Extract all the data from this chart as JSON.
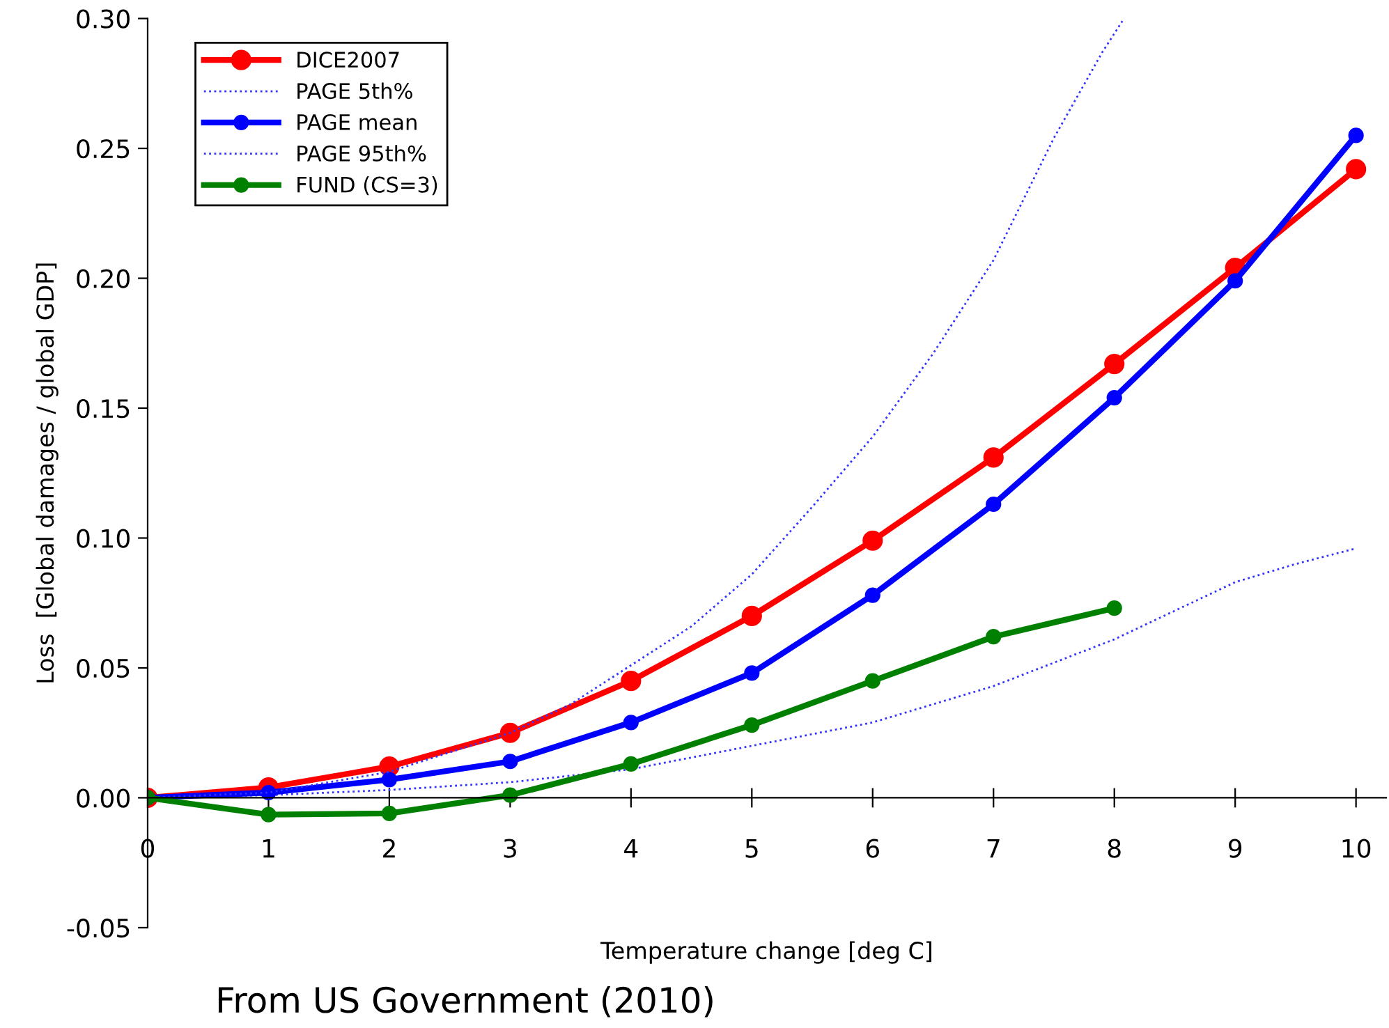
{
  "chart_data": {
    "type": "line",
    "xlabel": "Temperature change [deg C]",
    "ylabel": "Loss  [Global damages / global GDP]",
    "annotations": [
      "From US Government (2010)"
    ],
    "xlim": [
      0,
      10.25
    ],
    "xticks": [
      0,
      1,
      2,
      3,
      4,
      5,
      6,
      7,
      8,
      9,
      10
    ],
    "ylim": [
      -0.05,
      0.3
    ],
    "yticks": [
      {
        "value": -0.05,
        "label": "-0.05"
      },
      {
        "value": 0,
        "label": "0.00"
      },
      {
        "value": 0.05,
        "label": "0.05"
      },
      {
        "value": 0.1,
        "label": "0.10"
      },
      {
        "value": 0.15,
        "label": "0.15"
      },
      {
        "value": 0.2,
        "label": "0.20"
      },
      {
        "value": 0.25,
        "label": "0.25"
      },
      {
        "value": 0.3,
        "label": "0.30"
      }
    ],
    "grid": false,
    "legend": "top left",
    "series": [
      {
        "name": "DICE2007",
        "color": "#ff0000",
        "marker": "circle",
        "line_style": "solid",
        "x": [
          0,
          1,
          2,
          3,
          4,
          5,
          6,
          7,
          8,
          9,
          10
        ],
        "values": [
          0,
          0.004,
          0.012,
          0.025,
          0.045,
          0.07,
          0.099,
          0.131,
          0.167,
          0.204,
          0.242
        ]
      },
      {
        "name": "PAGE 5th%",
        "color": "#3333ff",
        "marker": "none",
        "line_style": "dotted",
        "x": [
          0,
          1,
          2,
          3,
          4,
          5,
          6,
          7,
          8,
          9,
          9.5,
          10
        ],
        "values": [
          0,
          0.001,
          0.003,
          0.006,
          0.011,
          0.02,
          0.029,
          0.043,
          0.061,
          0.083,
          0.09,
          0.096
        ]
      },
      {
        "name": "PAGE mean",
        "color": "#0000ff",
        "marker": "circle",
        "line_style": "solid",
        "x": [
          0,
          1,
          2,
          3,
          4,
          5,
          6,
          7,
          8,
          9,
          10
        ],
        "values": [
          0,
          0.002,
          0.007,
          0.014,
          0.029,
          0.048,
          0.078,
          0.113,
          0.154,
          0.199,
          0.255
        ]
      },
      {
        "name": "PAGE 95th%",
        "color": "#3333ff",
        "marker": "none",
        "line_style": "dotted",
        "x": [
          0,
          1,
          2,
          3,
          3.5,
          4,
          4.5,
          5,
          5.5,
          6,
          6.5,
          7,
          7.5,
          7.9,
          8.08
        ],
        "values": [
          0,
          0.002,
          0.01,
          0.025,
          0.036,
          0.051,
          0.066,
          0.086,
          0.112,
          0.139,
          0.171,
          0.207,
          0.254,
          0.287,
          0.3
        ]
      },
      {
        "name": "FUND (CS=3)",
        "color": "#008000",
        "marker": "circle",
        "line_style": "solid",
        "x": [
          0,
          1,
          2,
          3,
          4,
          5,
          6,
          7,
          8
        ],
        "values": [
          0,
          -0.0065,
          -0.006,
          0.001,
          0.013,
          0.028,
          0.045,
          0.062,
          0.073
        ]
      }
    ]
  }
}
